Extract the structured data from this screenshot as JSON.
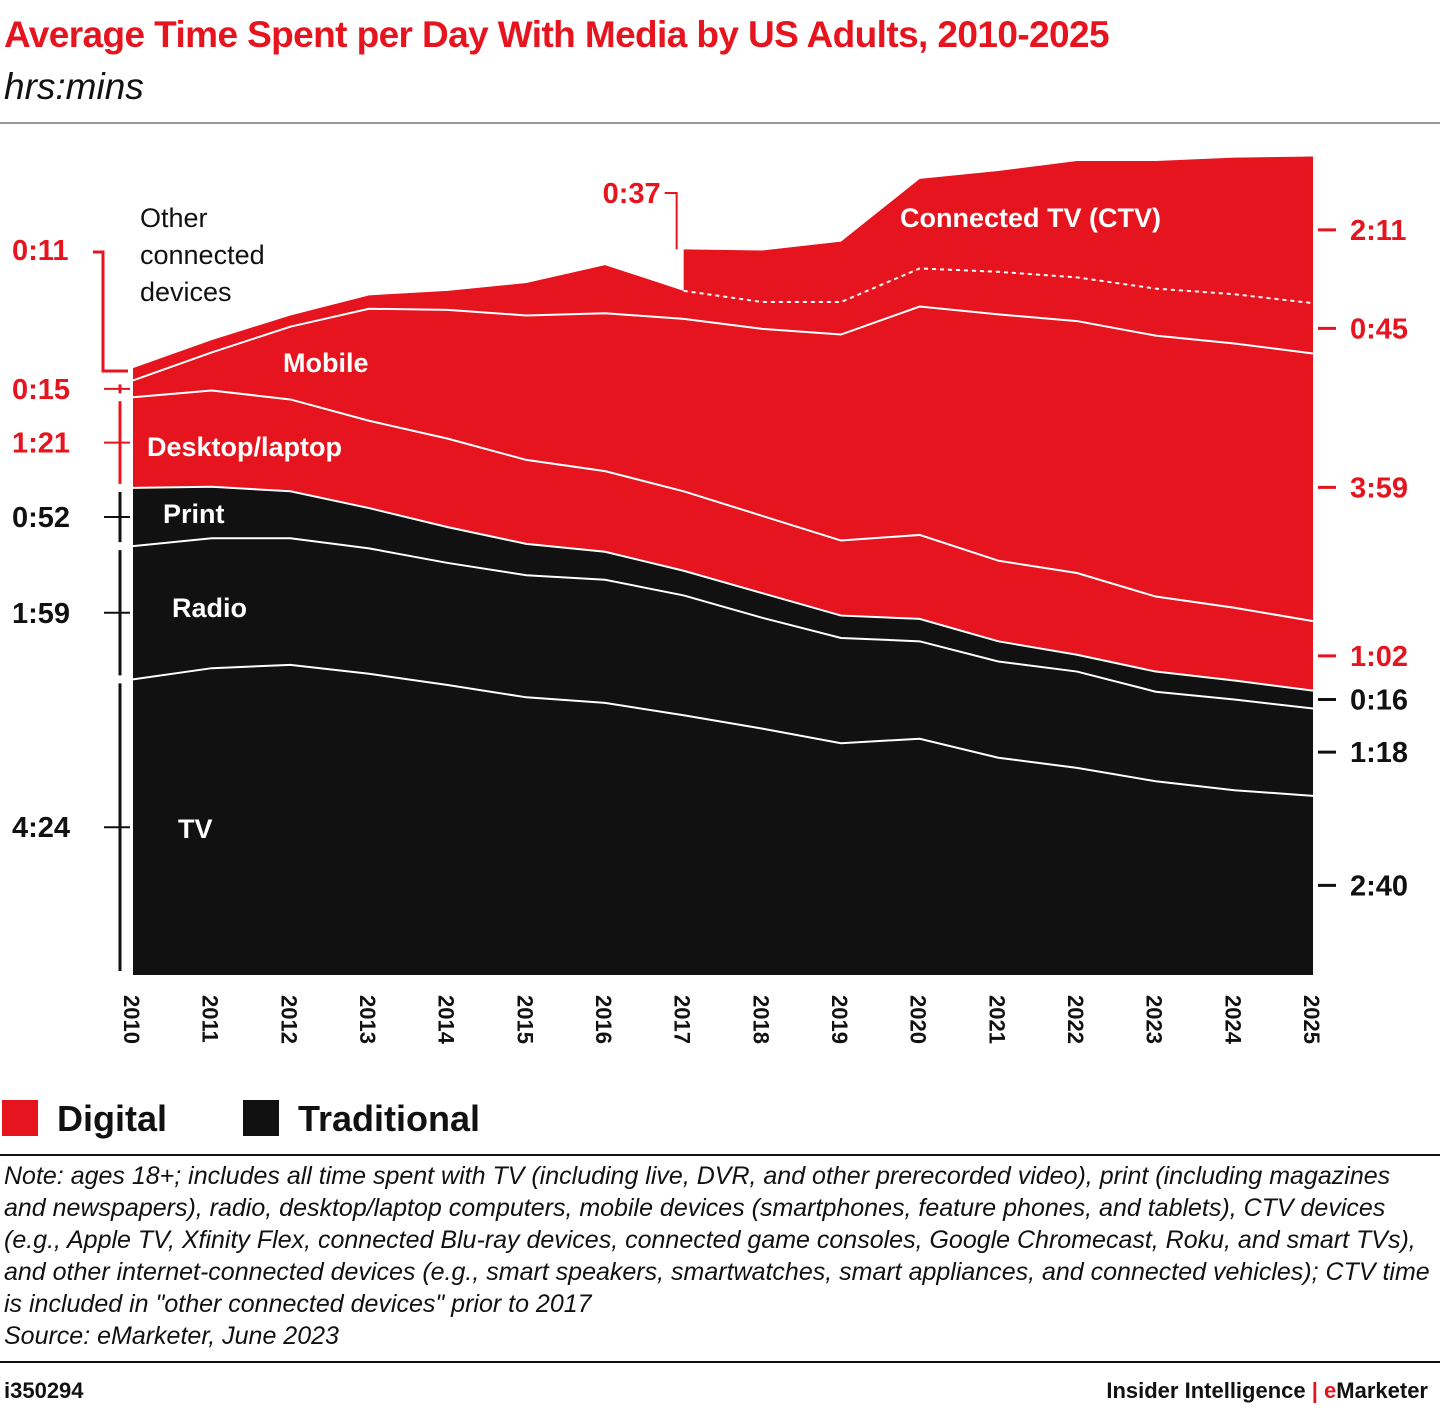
{
  "chart_data": {
    "type": "stacked-area",
    "title": "Average Time Spent per Day With Media by US Adults, 2010-2025",
    "subtitle": "hrs:mins",
    "categories": [
      "2010",
      "2011",
      "2012",
      "2013",
      "2014",
      "2015",
      "2016",
      "2017",
      "2018",
      "2019",
      "2020",
      "2021",
      "2022",
      "2023",
      "2024",
      "2025"
    ],
    "ylim": [
      0,
      735
    ],
    "series": [
      {
        "name": "TV",
        "color": "#111111",
        "values": [
          264,
          274,
          277,
          269,
          259,
          248,
          243,
          232,
          220,
          207,
          211,
          194,
          185,
          173,
          165,
          160
        ],
        "value_labels": [
          "4:24",
          null,
          null,
          null,
          null,
          null,
          null,
          null,
          null,
          null,
          null,
          null,
          null,
          null,
          null,
          "2:40"
        ]
      },
      {
        "name": "Radio",
        "color": "#111111",
        "values": [
          119,
          116,
          113,
          112,
          109,
          109,
          110,
          107,
          99,
          94,
          87,
          86,
          86,
          80,
          81,
          78
        ],
        "value_labels": [
          "1:59",
          null,
          null,
          null,
          null,
          null,
          null,
          null,
          null,
          null,
          null,
          null,
          null,
          null,
          null,
          "1:18"
        ]
      },
      {
        "name": "Print",
        "color": "#111111",
        "values": [
          52,
          46,
          42,
          36,
          32,
          28,
          25,
          22,
          22,
          20,
          20,
          18,
          15,
          18,
          17,
          16
        ],
        "value_labels": [
          "0:52",
          null,
          null,
          null,
          null,
          null,
          null,
          null,
          null,
          null,
          null,
          null,
          null,
          null,
          null,
          "0:16"
        ]
      },
      {
        "name": "Desktop/laptop",
        "color": "#e5141e",
        "values": [
          81,
          86,
          82,
          78,
          79,
          75,
          72,
          71,
          69,
          67,
          75,
          72,
          73,
          67,
          65,
          62
        ],
        "value_labels": [
          "1:21",
          null,
          null,
          null,
          null,
          null,
          null,
          null,
          null,
          null,
          null,
          null,
          null,
          null,
          null,
          "1:02"
        ]
      },
      {
        "name": "Mobile",
        "color": "#e5141e",
        "values": [
          15,
          34,
          65,
          100,
          115,
          129,
          141,
          154,
          167,
          184,
          204,
          220,
          225,
          233,
          236,
          239
        ],
        "value_labels": [
          "0:15",
          null,
          null,
          null,
          null,
          null,
          null,
          null,
          null,
          null,
          null,
          null,
          null,
          null,
          null,
          "3:59"
        ]
      },
      {
        "name": "Other connected devices",
        "color": "#e5141e",
        "values": [
          11,
          11,
          10,
          12,
          17,
          29,
          43,
          25,
          24,
          29,
          34,
          38,
          39,
          42,
          44,
          45
        ],
        "value_labels": [
          "0:11",
          null,
          null,
          null,
          null,
          null,
          null,
          null,
          null,
          null,
          null,
          null,
          null,
          null,
          null,
          "0:45"
        ]
      },
      {
        "name": "Connected TV (CTV)",
        "color": "#e5141e",
        "values": [
          null,
          null,
          null,
          null,
          null,
          null,
          null,
          37,
          46,
          54,
          80,
          90,
          104,
          114,
          122,
          131
        ],
        "value_labels": [
          null,
          null,
          null,
          null,
          null,
          null,
          null,
          "0:37",
          null,
          null,
          null,
          null,
          null,
          null,
          null,
          "2:11"
        ]
      }
    ],
    "legend": [
      {
        "name": "Digital",
        "color": "#e5141e"
      },
      {
        "name": "Traditional",
        "color": "#111111"
      }
    ],
    "note": "Note: ages 18+; includes all time spent with TV (including live, DVR, and other prerecorded video), print (including magazines and newspapers), radio, desktop/laptop computers, mobile devices (smartphones, feature phones, and tablets), CTV devices (e.g., Apple TV, Xfinity Flex, connected Blu-ray devices, connected game consoles, Google Chromecast, Roku, and smart TVs), and other internet-connected devices (e.g., smart speakers, smartwatches, smart appliances, and connected vehicles); CTV time is included in \"other connected devices\" prior to 2017",
    "source": "Source: eMarketer, June 2023",
    "chart_id": "i350294",
    "publisher": "Insider Intelligence",
    "separator": "|",
    "brand": "eMarketer"
  }
}
